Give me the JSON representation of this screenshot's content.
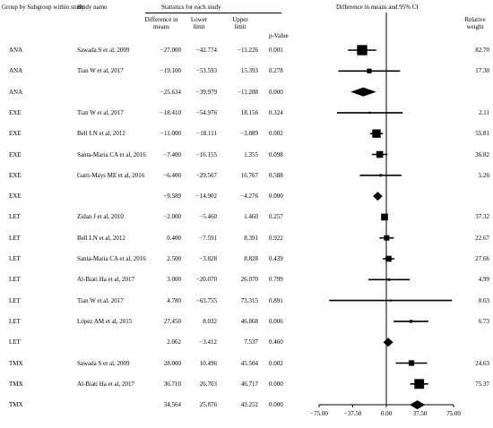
{
  "header": {
    "group_label": "Group by Subgroup within study",
    "study_label": "Study name",
    "stats_label": "Statistics for each study",
    "diff_label": "Difference in means",
    "lower_label": "Lower limit",
    "upper_label": "Upper limit",
    "p_label": "p-Value",
    "plot_title": "Difference in means and 95% CI",
    "weight_label": "Relative weight"
  },
  "rows": [
    {
      "group": "ANA",
      "study": "Sawada S et al, 2009",
      "diff": "−27.000",
      "lower": "−42.774",
      "upper": "−11.226",
      "p": "0.001",
      "weight": "82.70"
    },
    {
      "group": "ANA",
      "study": "Tian W et al, 2017",
      "diff": "−19.100",
      "lower": "−53.593",
      "upper": "15.393",
      "p": "0.278",
      "weight": "17.30"
    },
    {
      "group": "ANA",
      "study": "",
      "diff": "−25.634",
      "lower": "−39.979",
      "upper": "−11.288",
      "p": "0.000",
      "weight": ""
    },
    {
      "group": "EXE",
      "study": "Tian W et al, 2017",
      "diff": "−18.410",
      "lower": "−54.976",
      "upper": "18.156",
      "p": "0.324",
      "weight": "2.11"
    },
    {
      "group": "EXE",
      "study": "Bell LN et al, 2012",
      "diff": "−11.000",
      "lower": "−18.111",
      "upper": "−3.889",
      "p": "0.002",
      "weight": "55.81"
    },
    {
      "group": "EXE",
      "study": "Santa-Maria CA et al, 2016",
      "diff": "−7.400",
      "lower": "−16.155",
      "upper": "1.355",
      "p": "0.098",
      "weight": "36.82"
    },
    {
      "group": "EXE",
      "study": "Gatti-Mays ME et al, 2016",
      "diff": "−6.400",
      "lower": "−29.567",
      "upper": "16.767",
      "p": "0.588",
      "weight": "5.26"
    },
    {
      "group": "EXE",
      "study": "",
      "diff": "−9.589",
      "lower": "−14.902",
      "upper": "−4.276",
      "p": "0.000",
      "weight": ""
    },
    {
      "group": "LET",
      "study": "Zidan J et al, 2010",
      "diff": "−2.000",
      "lower": "−5.460",
      "upper": "1.460",
      "p": "0.257",
      "weight": "37.32"
    },
    {
      "group": "LET",
      "study": "Bell LN et al, 2012",
      "diff": "0.400",
      "lower": "−7.591",
      "upper": "8.391",
      "p": "0.922",
      "weight": "22.67"
    },
    {
      "group": "LET",
      "study": "Santa-Maria CA et al, 2016",
      "diff": "2.500",
      "lower": "−3.828",
      "upper": "8.828",
      "p": "0.439",
      "weight": "27.66"
    },
    {
      "group": "LET",
      "study": "Al-Biati Ha et al, 2017",
      "diff": "3.000",
      "lower": "−20.070",
      "upper": "26.070",
      "p": "0.799",
      "weight": "4.99"
    },
    {
      "group": "LET",
      "study": "Tian W et al, 2017",
      "diff": "4.780",
      "lower": "−63.755",
      "upper": "73.315",
      "p": "0.891",
      "weight": "0.63"
    },
    {
      "group": "LET",
      "study": "López AM et al, 2015",
      "diff": "27.450",
      "lower": "8.032",
      "upper": "46.868",
      "p": "0.006",
      "weight": "6.73"
    },
    {
      "group": "LET",
      "study": "",
      "diff": "2.062",
      "lower": "−3.412",
      "upper": "7.537",
      "p": "0.460",
      "weight": ""
    },
    {
      "group": "TMX",
      "study": "Sawada S et al, 2009",
      "diff": "28.000",
      "lower": "10.496",
      "upper": "45.504",
      "p": "0.002",
      "weight": "24.63"
    },
    {
      "group": "TMX",
      "study": "Al-Biati Ha et al, 2017",
      "diff": "36.710",
      "lower": "26.703",
      "upper": "46.717",
      "p": "0.000",
      "weight": "75.37"
    },
    {
      "group": "TMX",
      "study": "",
      "diff": "34.564",
      "lower": "25.876",
      "upper": "43.252",
      "p": "0.000",
      "weight": ""
    }
  ],
  "chart_data": {
    "type": "scatter",
    "title": "Difference in means and 95% CI",
    "xlabel": "",
    "ylabel": "",
    "xlim": [
      -75,
      75
    ],
    "x_ticks": [
      "−75.00",
      "−37.50",
      "0.00",
      "37.50",
      "75.00"
    ],
    "x_tick_values": [
      -75,
      -37.5,
      0,
      37.5,
      75
    ],
    "grid": false,
    "series": [
      {
        "group": "ANA",
        "study": "Sawada S et al, 2009",
        "diff": -27.0,
        "lower": -42.774,
        "upper": -11.226,
        "weight": 82.7,
        "summary": false
      },
      {
        "group": "ANA",
        "study": "Tian W et al, 2017",
        "diff": -19.1,
        "lower": -53.593,
        "upper": 15.393,
        "weight": 17.3,
        "summary": false
      },
      {
        "group": "ANA",
        "study": "",
        "diff": -25.634,
        "lower": -39.979,
        "upper": -11.288,
        "weight": null,
        "summary": true
      },
      {
        "group": "EXE",
        "study": "Tian W et al, 2017",
        "diff": -18.41,
        "lower": -54.976,
        "upper": 18.156,
        "weight": 2.11,
        "summary": false
      },
      {
        "group": "EXE",
        "study": "Bell LN et al, 2012",
        "diff": -11.0,
        "lower": -18.111,
        "upper": -3.889,
        "weight": 55.81,
        "summary": false
      },
      {
        "group": "EXE",
        "study": "Santa-Maria CA et al, 2016",
        "diff": -7.4,
        "lower": -16.155,
        "upper": 1.355,
        "weight": 36.82,
        "summary": false
      },
      {
        "group": "EXE",
        "study": "Gatti-Mays ME et al, 2016",
        "diff": -6.4,
        "lower": -29.567,
        "upper": 16.767,
        "weight": 5.26,
        "summary": false
      },
      {
        "group": "EXE",
        "study": "",
        "diff": -9.589,
        "lower": -14.902,
        "upper": -4.276,
        "weight": null,
        "summary": true
      },
      {
        "group": "LET",
        "study": "Zidan J et al, 2010",
        "diff": -2.0,
        "lower": -5.46,
        "upper": 1.46,
        "weight": 37.32,
        "summary": false
      },
      {
        "group": "LET",
        "study": "Bell LN et al, 2012",
        "diff": 0.4,
        "lower": -7.591,
        "upper": 8.391,
        "weight": 22.67,
        "summary": false
      },
      {
        "group": "LET",
        "study": "Santa-Maria CA et al, 2016",
        "diff": 2.5,
        "lower": -3.828,
        "upper": 8.828,
        "weight": 27.66,
        "summary": false
      },
      {
        "group": "LET",
        "study": "Al-Biati Ha et al, 2017",
        "diff": 3.0,
        "lower": -20.07,
        "upper": 26.07,
        "weight": 4.99,
        "summary": false
      },
      {
        "group": "LET",
        "study": "Tian W et al, 2017",
        "diff": 4.78,
        "lower": -63.755,
        "upper": 73.315,
        "weight": 0.63,
        "summary": false
      },
      {
        "group": "LET",
        "study": "López AM et al, 2015",
        "diff": 27.45,
        "lower": 8.032,
        "upper": 46.868,
        "weight": 6.73,
        "summary": false
      },
      {
        "group": "LET",
        "study": "",
        "diff": 2.062,
        "lower": -3.412,
        "upper": 7.537,
        "weight": null,
        "summary": true
      },
      {
        "group": "TMX",
        "study": "Sawada S et al, 2009",
        "diff": 28.0,
        "lower": 10.496,
        "upper": 45.504,
        "weight": 24.63,
        "summary": false
      },
      {
        "group": "TMX",
        "study": "Al-Biati Ha et al, 2017",
        "diff": 36.71,
        "lower": 26.703,
        "upper": 46.717,
        "weight": 75.37,
        "summary": false
      },
      {
        "group": "TMX",
        "study": "",
        "diff": 34.564,
        "lower": 25.876,
        "upper": 43.252,
        "weight": null,
        "summary": true
      }
    ]
  }
}
